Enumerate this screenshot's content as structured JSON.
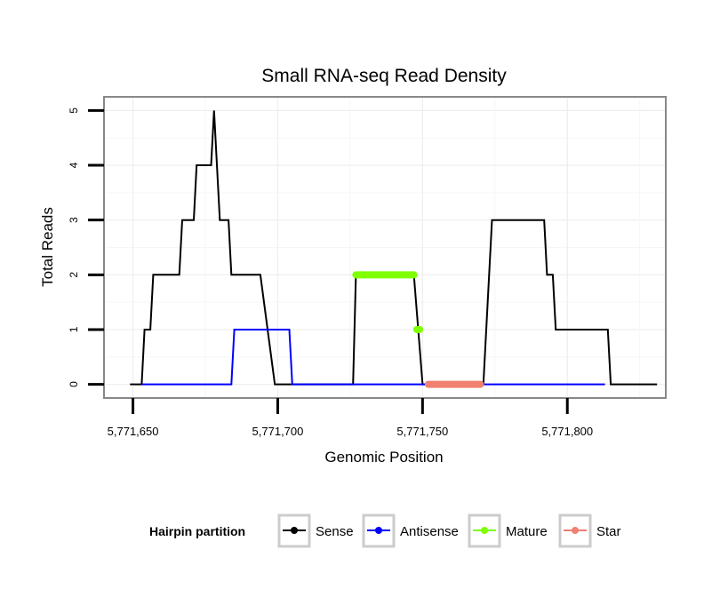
{
  "chart_data": {
    "type": "line",
    "title": "Small RNA-seq Read Density",
    "xlabel": "Genomic Position",
    "ylabel": "Total Reads",
    "xlim": [
      5771640,
      5771834
    ],
    "ylim": [
      -0.25,
      5.25
    ],
    "grid": true,
    "x_ticks": [
      {
        "value": 5771650,
        "label": "5,771,650"
      },
      {
        "value": 5771700,
        "label": "5,771,700"
      },
      {
        "value": 5771750,
        "label": "5,771,750"
      },
      {
        "value": 5771800,
        "label": "5,771,800"
      }
    ],
    "y_ticks": [
      {
        "value": 0,
        "label": "0"
      },
      {
        "value": 1,
        "label": "1"
      },
      {
        "value": 2,
        "label": "2"
      },
      {
        "value": 3,
        "label": "3"
      },
      {
        "value": 4,
        "label": "4"
      },
      {
        "value": 5,
        "label": "5"
      }
    ],
    "legend": {
      "title": "Hairpin partition",
      "position": "bottom"
    },
    "series": [
      {
        "name": "Sense",
        "color": "#000000",
        "style": "line",
        "points": [
          [
            5771649,
            0
          ],
          [
            5771653,
            0
          ],
          [
            5771654,
            1
          ],
          [
            5771656,
            1
          ],
          [
            5771657,
            2
          ],
          [
            5771666,
            2
          ],
          [
            5771667,
            3
          ],
          [
            5771671,
            3
          ],
          [
            5771672,
            4
          ],
          [
            5771677,
            4
          ],
          [
            5771678,
            5
          ],
          [
            5771680,
            3
          ],
          [
            5771683,
            3
          ],
          [
            5771684,
            2
          ],
          [
            5771694,
            2
          ],
          [
            5771699,
            0
          ],
          [
            5771726,
            0
          ],
          [
            5771727,
            2
          ],
          [
            5771747,
            2
          ],
          [
            5771750,
            0
          ],
          [
            5771771,
            0
          ],
          [
            5771774,
            3
          ],
          [
            5771792,
            3
          ],
          [
            5771793,
            2
          ],
          [
            5771795,
            2
          ],
          [
            5771796,
            1
          ],
          [
            5771814,
            1
          ],
          [
            5771815,
            0
          ],
          [
            5771831,
            0
          ]
        ]
      },
      {
        "name": "Antisense",
        "color": "#0000ff",
        "style": "line",
        "points": [
          [
            5771653,
            0
          ],
          [
            5771684,
            0
          ],
          [
            5771685,
            1
          ],
          [
            5771704,
            1
          ],
          [
            5771705,
            0
          ],
          [
            5771813,
            0
          ]
        ]
      },
      {
        "name": "Mature",
        "color": "#7fff00",
        "style": "thick",
        "segments": [
          [
            [
              5771727,
              2
            ],
            [
              5771747,
              2
            ]
          ],
          [
            [
              5771748,
              1
            ],
            [
              5771749,
              1
            ]
          ]
        ]
      },
      {
        "name": "Star",
        "color": "#f08070",
        "style": "thick",
        "segments": [
          [
            [
              5771752,
              0
            ],
            [
              5771770,
              0
            ]
          ]
        ]
      }
    ]
  }
}
